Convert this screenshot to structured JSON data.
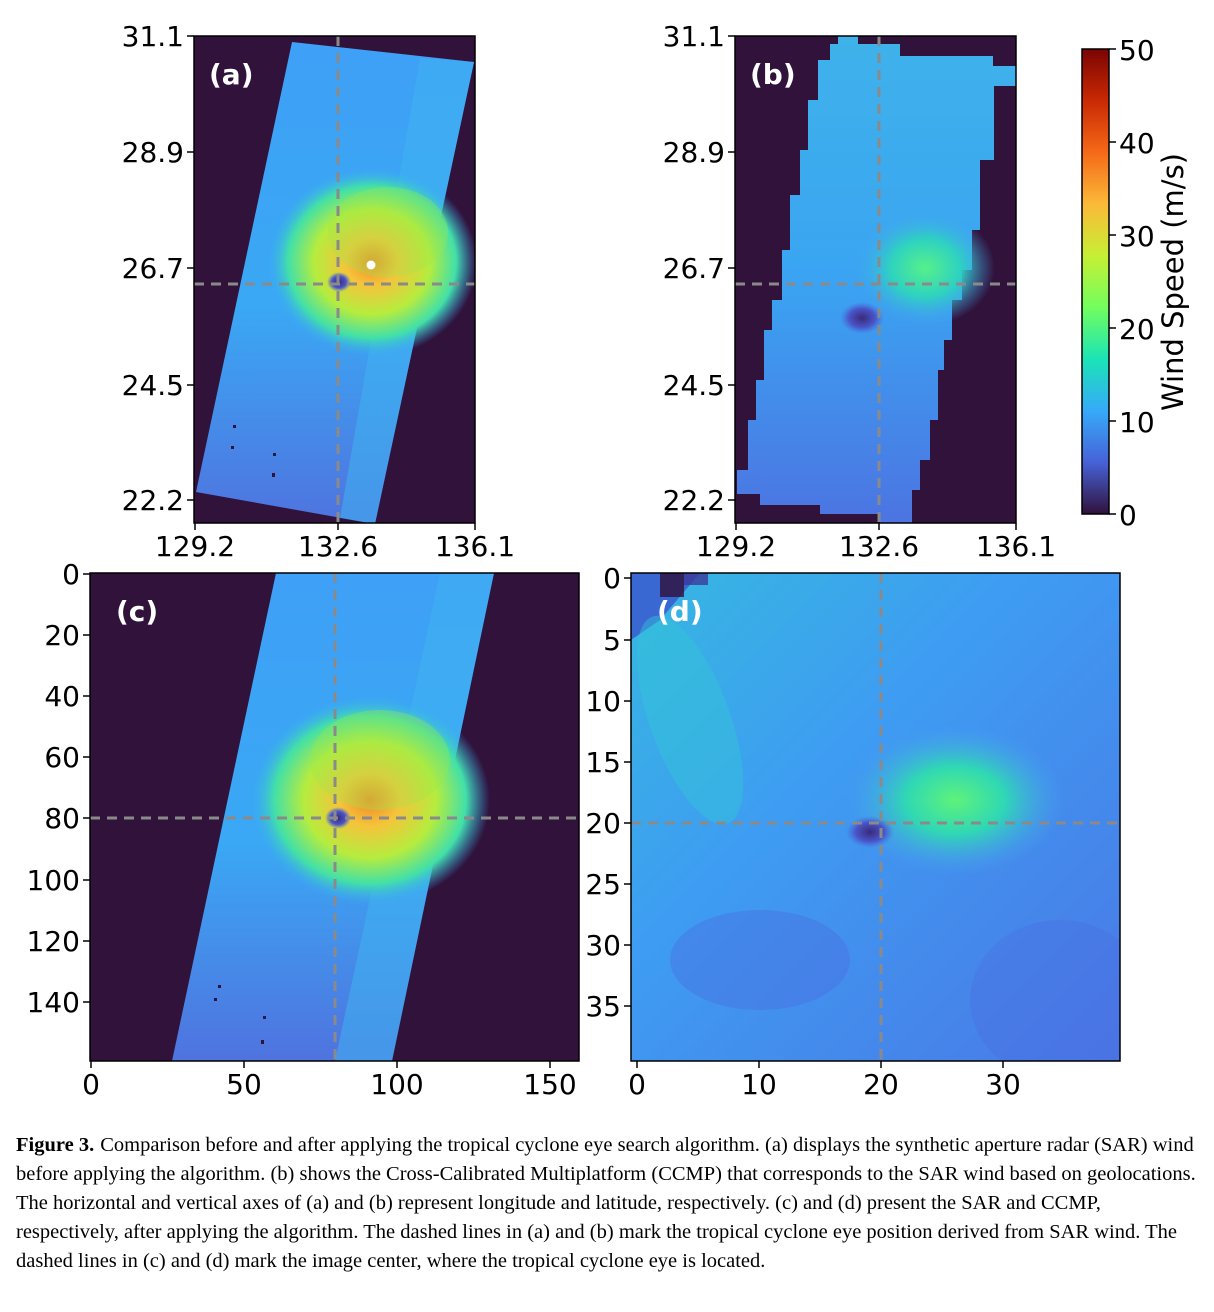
{
  "figure": {
    "colorbar": {
      "label": "Wind Speed (m/s)",
      "ticks": [
        "0",
        "10",
        "20",
        "30",
        "40",
        "50"
      ],
      "range": [
        0,
        50
      ],
      "colormap": "turbo",
      "stops": [
        "#30123b",
        "#4662d7",
        "#36aaf9",
        "#1ae4b6",
        "#72fe5e",
        "#c7ef34",
        "#fbb938",
        "#f56918",
        "#c92903",
        "#7a0403"
      ]
    },
    "panels": [
      {
        "id": "a",
        "label": "(a)",
        "x_ticks": [
          "129.2",
          "132.6",
          "136.1"
        ],
        "y_ticks": [
          "31.1",
          "28.9",
          "26.7",
          "24.5",
          "22.2"
        ],
        "eye_marker": {
          "x": 132.6,
          "y": 26.4
        }
      },
      {
        "id": "b",
        "label": "(b)",
        "x_ticks": [
          "129.2",
          "132.6",
          "136.1"
        ],
        "y_ticks": [
          "31.1",
          "28.9",
          "26.7",
          "24.5",
          "22.2"
        ],
        "eye_marker": {
          "x": 132.6,
          "y": 26.4
        }
      },
      {
        "id": "c",
        "label": "(c)",
        "x_ticks": [
          "0",
          "50",
          "100",
          "150"
        ],
        "y_ticks": [
          "0",
          "20",
          "40",
          "60",
          "80",
          "100",
          "120",
          "140"
        ],
        "image_center": {
          "x": 80,
          "y": 80
        }
      },
      {
        "id": "d",
        "label": "(d)",
        "x_ticks": [
          "0",
          "10",
          "20",
          "30"
        ],
        "y_ticks": [
          "0",
          "5",
          "10",
          "15",
          "20",
          "25",
          "30",
          "35"
        ],
        "image_center": {
          "x": 20,
          "y": 20
        }
      }
    ]
  },
  "caption": {
    "number": "Figure 3.",
    "text": "Comparison before and after applying the tropical cyclone eye search algorithm. (a) displays the synthetic aperture radar (SAR) wind before applying the algorithm. (b) shows the Cross-Calibrated Multiplatform (CCMP) that corresponds to the SAR wind based on geolocations. The horizontal and vertical axes of (a) and (b) represent longitude and latitude, respectively. (c) and (d) present the SAR and CCMP, respectively, after applying the algorithm. The dashed lines in (a) and (b) mark the tropical cyclone eye position derived from SAR wind. The dashed lines in (c) and (d) mark the image center, where the tropical cyclone eye is located."
  }
}
